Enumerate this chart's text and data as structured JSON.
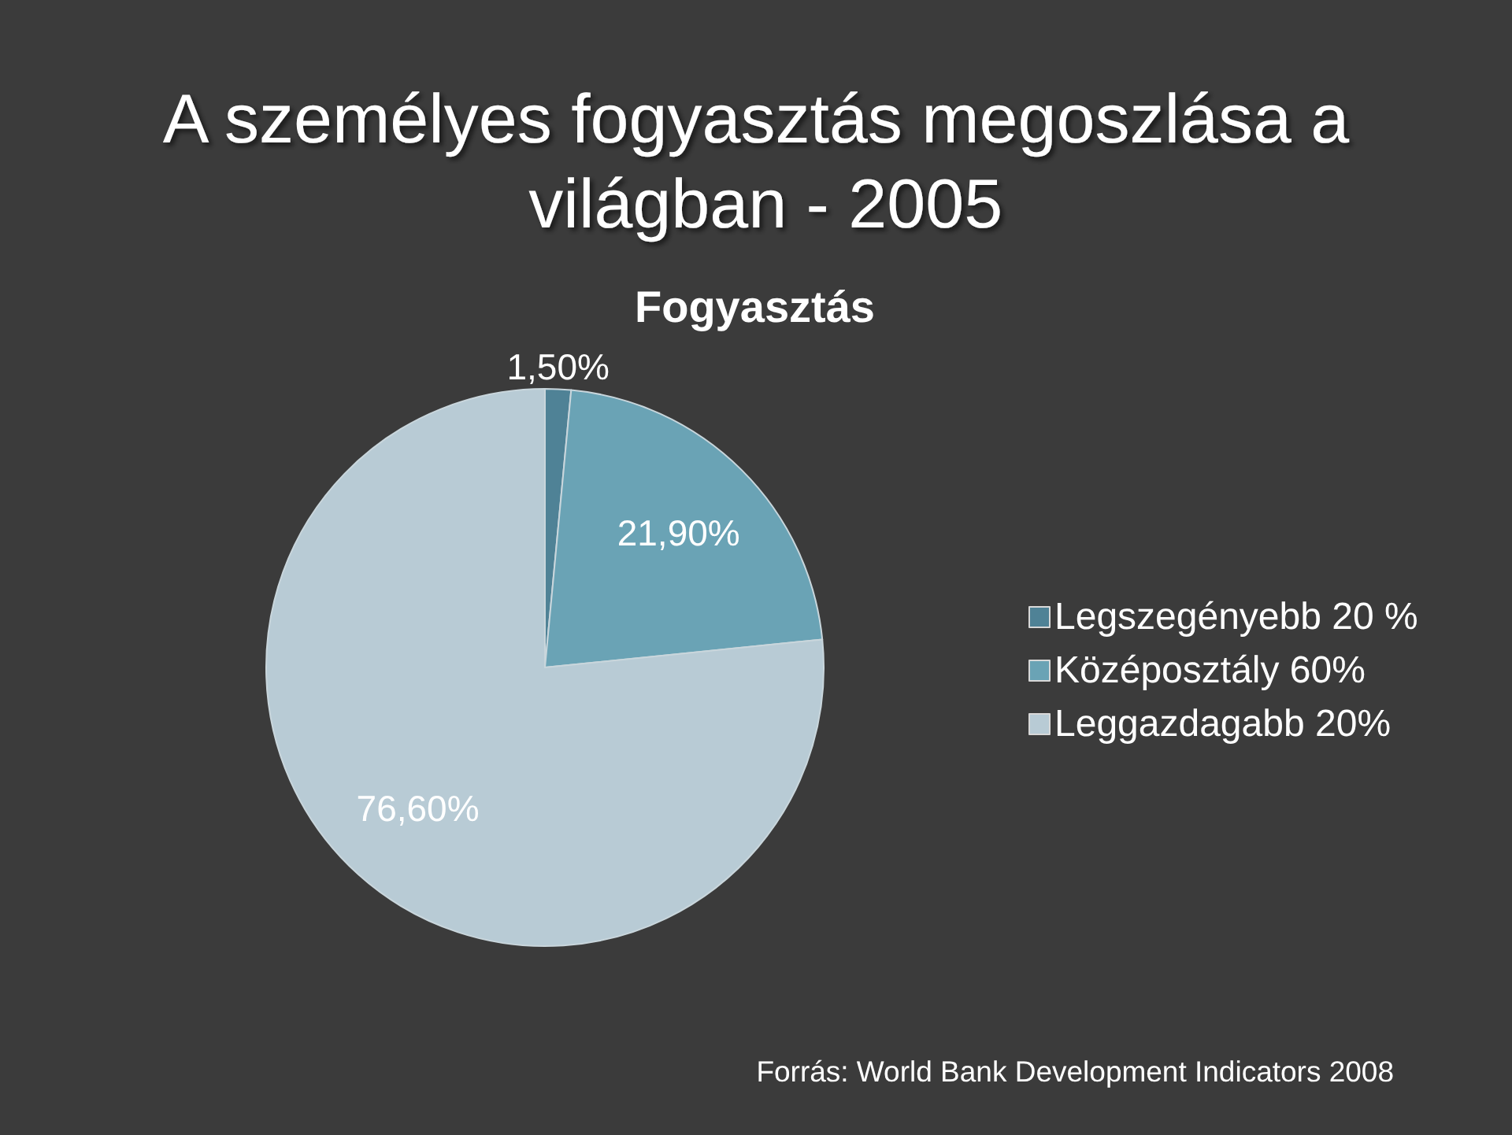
{
  "chart_data": {
    "type": "pie",
    "title": "A személyes fogyasztás megoszlása a világban - 2005",
    "subtitle": "Fogyasztás",
    "categories": [
      "Legszegényebb 20 %",
      "Középosztály 60%",
      "Leggazdagabb 20%"
    ],
    "values": [
      1.5,
      21.9,
      76.6
    ],
    "value_labels": [
      "1,50%",
      "21,90%",
      "76,60%"
    ],
    "colors": [
      "#4f8296",
      "#6aa3b5",
      "#b8cbd5"
    ],
    "legend": "right",
    "annotations": [
      "Forrás: World Bank Development Indicators 2008"
    ]
  }
}
